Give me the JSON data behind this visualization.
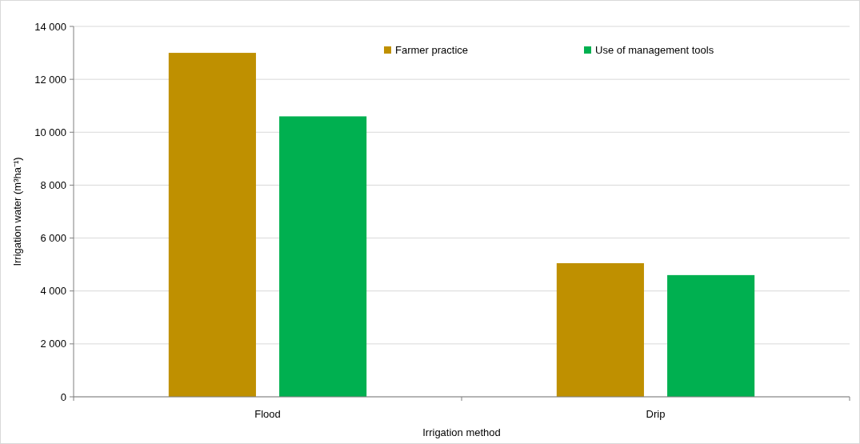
{
  "chart_data": {
    "type": "bar",
    "xlabel": "Irrigation method",
    "ylabel": "Irrigation water (m³ha⁻¹)",
    "categories": [
      "Flood",
      "Drip"
    ],
    "series": [
      {
        "name": "Farmer practice",
        "color": "#bf9000",
        "values": [
          13000,
          5050
        ]
      },
      {
        "name": "Use of management tools",
        "color": "#00b050",
        "values": [
          10600,
          4600
        ]
      }
    ],
    "ylim": [
      0,
      14000
    ],
    "yticks": [
      {
        "value": 0,
        "label": "0"
      },
      {
        "value": 2000,
        "label": "2 000"
      },
      {
        "value": 4000,
        "label": "4 000"
      },
      {
        "value": 6000,
        "label": "6 000"
      },
      {
        "value": 8000,
        "label": "8 000"
      },
      {
        "value": 10000,
        "label": "10 000"
      },
      {
        "value": 12000,
        "label": "12 000"
      },
      {
        "value": 14000,
        "label": "14 000"
      }
    ],
    "grid": "y",
    "legend": "top right"
  }
}
